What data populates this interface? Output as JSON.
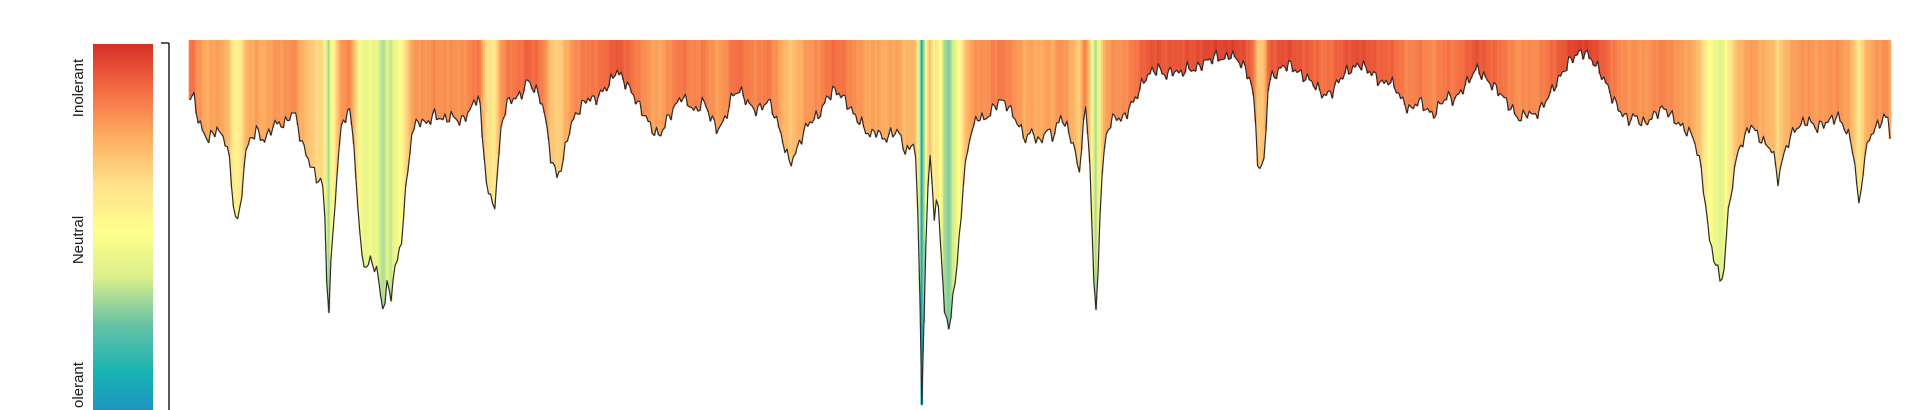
{
  "chart_data": {
    "type": "area",
    "title": "",
    "xlabel": "",
    "ylabel": "",
    "ylim": [
      -1,
      1
    ],
    "grid": false,
    "legend": {
      "placement": "left",
      "type": "colorbar",
      "labels": [
        "Intolerant",
        "Neutral",
        "Tolerant"
      ],
      "visible_labels": [
        "Inolerant",
        "Neutral",
        "olerant"
      ]
    },
    "colorscale": [
      "#d62f26",
      "#f46d43",
      "#fdae61",
      "#fee08b",
      "#ffff8c",
      "#d9ef8b",
      "#66c2a5",
      "#1ab3b3",
      "#1f8fc4"
    ],
    "series": [
      {
        "anchors": [
          [
            0,
            0.7
          ],
          [
            0.002,
            0.73
          ],
          [
            0.005,
            0.58
          ],
          [
            0.01,
            0.5
          ],
          [
            0.015,
            0.56
          ],
          [
            0.018,
            0.51
          ],
          [
            0.02,
            0.5
          ],
          [
            0.022,
            0.38
          ],
          [
            0.024,
            0.17
          ],
          [
            0.026,
            0.1
          ],
          [
            0.028,
            0.14
          ],
          [
            0.03,
            0.4
          ],
          [
            0.033,
            0.5
          ],
          [
            0.037,
            0.55
          ],
          [
            0.041,
            0.49
          ],
          [
            0.045,
            0.56
          ],
          [
            0.049,
            0.59
          ],
          [
            0.052,
            0.57
          ],
          [
            0.055,
            0.62
          ],
          [
            0.058,
            0.64
          ],
          [
            0.06,
            0.56
          ],
          [
            0.062,
            0.48
          ],
          [
            0.064,
            0.44
          ],
          [
            0.067,
            0.37
          ],
          [
            0.07,
            0.31
          ],
          [
            0.072,
            0.3
          ],
          [
            0.074,
            0.26
          ],
          [
            0.0755,
            -0.13
          ],
          [
            0.0765,
            -0.43
          ],
          [
            0.0775,
            -0.2
          ],
          [
            0.08,
            0.15
          ],
          [
            0.083,
            0.53
          ],
          [
            0.086,
            0.62
          ],
          [
            0.088,
            0.66
          ],
          [
            0.09,
            0.55
          ],
          [
            0.092,
            0.31
          ],
          [
            0.094,
            0.0
          ],
          [
            0.097,
            -0.15
          ],
          [
            0.1,
            -0.1
          ],
          [
            0.103,
            -0.14
          ],
          [
            0.105,
            -0.24
          ],
          [
            0.107,
            -0.36
          ],
          [
            0.109,
            -0.22
          ],
          [
            0.111,
            -0.3
          ],
          [
            0.113,
            -0.15
          ],
          [
            0.115,
            -0.1
          ],
          [
            0.117,
            0.0
          ],
          [
            0.12,
            0.3
          ],
          [
            0.123,
            0.55
          ],
          [
            0.127,
            0.6
          ],
          [
            0.131,
            0.58
          ],
          [
            0.135,
            0.63
          ],
          [
            0.14,
            0.6
          ],
          [
            0.145,
            0.62
          ],
          [
            0.15,
            0.59
          ],
          [
            0.155,
            0.65
          ],
          [
            0.158,
            0.7
          ],
          [
            0.16,
            0.73
          ],
          [
            0.162,
            0.5
          ],
          [
            0.164,
            0.3
          ],
          [
            0.166,
            0.2
          ],
          [
            0.169,
            0.18
          ],
          [
            0.172,
            0.55
          ],
          [
            0.175,
            0.68
          ],
          [
            0.179,
            0.71
          ],
          [
            0.183,
            0.72
          ],
          [
            0.187,
            0.8
          ],
          [
            0.19,
            0.76
          ],
          [
            0.193,
            0.73
          ],
          [
            0.196,
            0.65
          ],
          [
            0.2,
            0.4
          ],
          [
            0.203,
            0.32
          ],
          [
            0.206,
            0.37
          ],
          [
            0.209,
            0.52
          ],
          [
            0.212,
            0.6
          ],
          [
            0.216,
            0.66
          ],
          [
            0.22,
            0.71
          ],
          [
            0.224,
            0.7
          ],
          [
            0.228,
            0.74
          ],
          [
            0.232,
            0.78
          ],
          [
            0.236,
            0.85
          ],
          [
            0.24,
            0.8
          ],
          [
            0.244,
            0.75
          ],
          [
            0.248,
            0.68
          ],
          [
            0.252,
            0.62
          ],
          [
            0.256,
            0.55
          ],
          [
            0.26,
            0.52
          ],
          [
            0.264,
            0.6
          ],
          [
            0.268,
            0.66
          ],
          [
            0.272,
            0.72
          ],
          [
            0.276,
            0.68
          ],
          [
            0.28,
            0.64
          ],
          [
            0.284,
            0.7
          ],
          [
            0.288,
            0.62
          ],
          [
            0.292,
            0.55
          ],
          [
            0.296,
            0.6
          ],
          [
            0.3,
            0.72
          ],
          [
            0.304,
            0.75
          ],
          [
            0.308,
            0.7
          ],
          [
            0.312,
            0.65
          ],
          [
            0.316,
            0.66
          ],
          [
            0.32,
            0.7
          ],
          [
            0.324,
            0.62
          ],
          [
            0.328,
            0.5
          ],
          [
            0.332,
            0.38
          ],
          [
            0.336,
            0.45
          ],
          [
            0.34,
            0.55
          ],
          [
            0.344,
            0.6
          ],
          [
            0.348,
            0.62
          ],
          [
            0.352,
            0.7
          ],
          [
            0.356,
            0.75
          ],
          [
            0.36,
            0.73
          ],
          [
            0.364,
            0.68
          ],
          [
            0.368,
            0.62
          ],
          [
            0.372,
            0.58
          ],
          [
            0.376,
            0.52
          ],
          [
            0.38,
            0.55
          ],
          [
            0.384,
            0.5
          ],
          [
            0.388,
            0.53
          ],
          [
            0.392,
            0.55
          ],
          [
            0.395,
            0.46
          ],
          [
            0.398,
            0.44
          ],
          [
            0.4,
            0.5
          ],
          [
            0.402,
            0.42
          ],
          [
            0.404,
            -0.3
          ],
          [
            0.405,
            -0.82
          ],
          [
            0.406,
            -0.5
          ],
          [
            0.408,
            0.2
          ],
          [
            0.41,
            0.45
          ],
          [
            0.412,
            0.1
          ],
          [
            0.414,
            0.22
          ],
          [
            0.416,
            -0.1
          ],
          [
            0.418,
            -0.4
          ],
          [
            0.42,
            -0.44
          ],
          [
            0.422,
            -0.3
          ],
          [
            0.424,
            -0.2
          ],
          [
            0.426,
            0.05
          ],
          [
            0.428,
            0.25
          ],
          [
            0.43,
            0.45
          ],
          [
            0.433,
            0.55
          ],
          [
            0.436,
            0.62
          ],
          [
            0.44,
            0.6
          ],
          [
            0.444,
            0.65
          ],
          [
            0.448,
            0.7
          ],
          [
            0.452,
            0.68
          ],
          [
            0.456,
            0.62
          ],
          [
            0.46,
            0.55
          ],
          [
            0.463,
            0.5
          ],
          [
            0.466,
            0.55
          ],
          [
            0.47,
            0.48
          ],
          [
            0.474,
            0.55
          ],
          [
            0.478,
            0.52
          ],
          [
            0.482,
            0.62
          ],
          [
            0.486,
            0.55
          ],
          [
            0.49,
            0.45
          ],
          [
            0.492,
            0.3
          ],
          [
            0.494,
            0.55
          ],
          [
            0.496,
            0.66
          ],
          [
            0.498,
            0.4
          ],
          [
            0.5,
            -0.1
          ],
          [
            0.501,
            -0.45
          ],
          [
            0.502,
            -0.3
          ],
          [
            0.504,
            0.2
          ],
          [
            0.506,
            0.45
          ],
          [
            0.508,
            0.56
          ],
          [
            0.512,
            0.62
          ],
          [
            0.516,
            0.6
          ],
          [
            0.52,
            0.66
          ],
          [
            0.524,
            0.72
          ],
          [
            0.528,
            0.8
          ],
          [
            0.532,
            0.84
          ],
          [
            0.536,
            0.86
          ],
          [
            0.54,
            0.82
          ],
          [
            0.544,
            0.85
          ],
          [
            0.548,
            0.83
          ],
          [
            0.552,
            0.86
          ],
          [
            0.556,
            0.85
          ],
          [
            0.56,
            0.88
          ],
          [
            0.564,
            0.9
          ],
          [
            0.568,
            0.92
          ],
          [
            0.572,
            0.9
          ],
          [
            0.576,
            0.93
          ],
          [
            0.58,
            0.9
          ],
          [
            0.584,
            0.86
          ],
          [
            0.587,
            0.8
          ],
          [
            0.589,
            0.7
          ],
          [
            0.591,
            0.4
          ],
          [
            0.593,
            0.33
          ],
          [
            0.595,
            0.45
          ],
          [
            0.597,
            0.8
          ],
          [
            0.6,
            0.82
          ],
          [
            0.604,
            0.86
          ],
          [
            0.608,
            0.88
          ],
          [
            0.612,
            0.85
          ],
          [
            0.616,
            0.82
          ],
          [
            0.62,
            0.8
          ],
          [
            0.624,
            0.76
          ],
          [
            0.628,
            0.72
          ],
          [
            0.632,
            0.74
          ],
          [
            0.636,
            0.8
          ],
          [
            0.64,
            0.84
          ],
          [
            0.644,
            0.86
          ],
          [
            0.648,
            0.88
          ],
          [
            0.652,
            0.85
          ],
          [
            0.656,
            0.82
          ],
          [
            0.66,
            0.78
          ],
          [
            0.664,
            0.8
          ],
          [
            0.668,
            0.75
          ],
          [
            0.672,
            0.68
          ],
          [
            0.676,
            0.65
          ],
          [
            0.68,
            0.7
          ],
          [
            0.684,
            0.66
          ],
          [
            0.688,
            0.62
          ],
          [
            0.692,
            0.68
          ],
          [
            0.696,
            0.72
          ],
          [
            0.7,
            0.7
          ],
          [
            0.704,
            0.75
          ],
          [
            0.708,
            0.8
          ],
          [
            0.712,
            0.86
          ],
          [
            0.716,
            0.82
          ],
          [
            0.72,
            0.78
          ],
          [
            0.724,
            0.75
          ],
          [
            0.728,
            0.7
          ],
          [
            0.732,
            0.65
          ],
          [
            0.736,
            0.6
          ],
          [
            0.74,
            0.64
          ],
          [
            0.744,
            0.62
          ],
          [
            0.748,
            0.66
          ],
          [
            0.752,
            0.72
          ],
          [
            0.756,
            0.78
          ],
          [
            0.76,
            0.84
          ],
          [
            0.764,
            0.9
          ],
          [
            0.768,
            0.93
          ],
          [
            0.772,
            0.94
          ],
          [
            0.776,
            0.9
          ],
          [
            0.78,
            0.85
          ],
          [
            0.784,
            0.78
          ],
          [
            0.788,
            0.7
          ],
          [
            0.792,
            0.64
          ],
          [
            0.796,
            0.6
          ],
          [
            0.8,
            0.62
          ],
          [
            0.804,
            0.58
          ],
          [
            0.808,
            0.6
          ],
          [
            0.812,
            0.64
          ],
          [
            0.816,
            0.66
          ],
          [
            0.82,
            0.62
          ],
          [
            0.824,
            0.58
          ],
          [
            0.828,
            0.55
          ],
          [
            0.832,
            0.52
          ],
          [
            0.836,
            0.38
          ],
          [
            0.838,
            0.25
          ],
          [
            0.841,
            0.0
          ],
          [
            0.844,
            -0.1
          ],
          [
            0.847,
            -0.2
          ],
          [
            0.849,
            -0.17
          ],
          [
            0.851,
            0.1
          ],
          [
            0.854,
            0.3
          ],
          [
            0.857,
            0.45
          ],
          [
            0.86,
            0.5
          ],
          [
            0.864,
            0.58
          ],
          [
            0.868,
            0.52
          ],
          [
            0.872,
            0.48
          ],
          [
            0.876,
            0.45
          ],
          [
            0.879,
            0.3
          ],
          [
            0.882,
            0.42
          ],
          [
            0.885,
            0.5
          ],
          [
            0.888,
            0.55
          ],
          [
            0.892,
            0.58
          ],
          [
            0.896,
            0.6
          ],
          [
            0.9,
            0.56
          ],
          [
            0.904,
            0.58
          ],
          [
            0.908,
            0.6
          ],
          [
            0.912,
            0.62
          ],
          [
            0.916,
            0.56
          ],
          [
            0.92,
            0.48
          ],
          [
            0.922,
            0.34
          ],
          [
            0.924,
            0.15
          ],
          [
            0.926,
            0.35
          ],
          [
            0.929,
            0.5
          ],
          [
            0.932,
            0.55
          ],
          [
            0.935,
            0.58
          ],
          [
            0.938,
            0.62
          ],
          [
            0.94,
            0.6
          ],
          [
            0.941,
            0.52
          ]
        ]
      }
    ]
  }
}
